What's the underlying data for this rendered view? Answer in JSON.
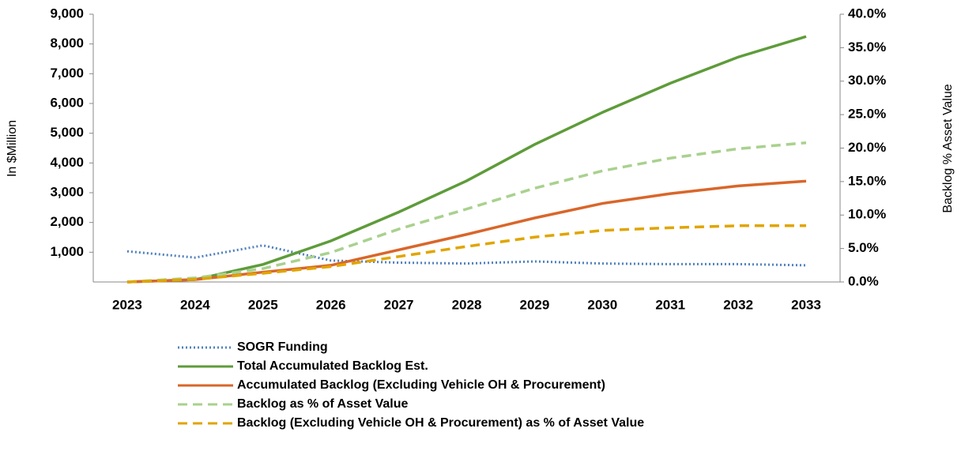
{
  "chart_data": {
    "type": "line",
    "ylabel": "In $Million",
    "y2label": "Backlog % Asset Value",
    "categories": [
      "2023",
      "2024",
      "2025",
      "2026",
      "2027",
      "2028",
      "2029",
      "2030",
      "2031",
      "2032",
      "2033"
    ],
    "ylim": [
      0,
      9000
    ],
    "yticks": [
      {
        "value": 1000,
        "label": "1,000"
      },
      {
        "value": 2000,
        "label": "2,000"
      },
      {
        "value": 3000,
        "label": "3,000"
      },
      {
        "value": 4000,
        "label": "4,000"
      },
      {
        "value": 5000,
        "label": "5,000"
      },
      {
        "value": 6000,
        "label": "6,000"
      },
      {
        "value": 7000,
        "label": "7,000"
      },
      {
        "value": 8000,
        "label": "8,000"
      },
      {
        "value": 9000,
        "label": "9,000"
      }
    ],
    "y2lim": [
      0,
      40
    ],
    "y2ticks": [
      {
        "value": 0,
        "label": "0.0%"
      },
      {
        "value": 5,
        "label": "5.0%"
      },
      {
        "value": 10,
        "label": "10.0%"
      },
      {
        "value": 15,
        "label": "15.0%"
      },
      {
        "value": 20,
        "label": "20.0%"
      },
      {
        "value": 25,
        "label": "25.0%"
      },
      {
        "value": 30,
        "label": "30.0%"
      },
      {
        "value": 35,
        "label": "35.0%"
      },
      {
        "value": 40,
        "label": "40.0%"
      }
    ],
    "legend": "bottom",
    "series": [
      {
        "name": "SOGR Funding",
        "color": "#4f81bd",
        "dash": "dotted",
        "values": [
          1030,
          820,
          1230,
          720,
          650,
          620,
          690,
          620,
          600,
          600,
          560
        ]
      },
      {
        "name": "Total Accumulated Backlog Est.",
        "color": "#5e9c3a",
        "dash": "solid",
        "values": [
          0,
          80,
          590,
          1380,
          2350,
          3400,
          4620,
          5700,
          6680,
          7560,
          8250
        ]
      },
      {
        "name": "Accumulated Backlog (Excluding Vehicle OH & Procurement)",
        "color": "#d9662a",
        "dash": "solid",
        "values": [
          0,
          80,
          330,
          560,
          1080,
          1600,
          2150,
          2640,
          2970,
          3230,
          3390
        ]
      },
      {
        "name": "Backlog as % of Asset Value",
        "color": "#a9d18e",
        "dash": "dashed",
        "axis": "y2",
        "values": [
          0,
          0.6,
          2.0,
          4.4,
          7.9,
          10.9,
          14.0,
          16.6,
          18.5,
          19.9,
          20.8
        ]
      },
      {
        "name": "Backlog (Excluding Vehicle OH & Procurement) as % of  Asset Value",
        "color": "#e0a500",
        "dash": "dashed",
        "axis": "y2",
        "values": [
          0,
          0.4,
          1.3,
          2.3,
          3.8,
          5.3,
          6.7,
          7.7,
          8.1,
          8.4,
          8.4
        ]
      }
    ]
  }
}
